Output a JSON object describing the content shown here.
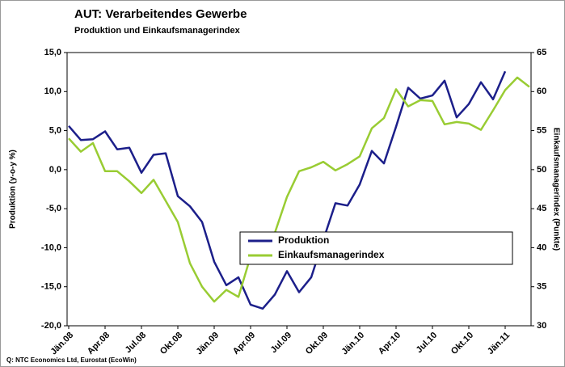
{
  "chart_data": {
    "type": "line",
    "title": "AUT: Verarbeitendes Gewerbe",
    "subtitle": "Produktion und Einkaufsmanagerindex",
    "source": "Q: NTC Economics Ltd, Eurostat (EcoWin)",
    "y_label": "Produktion (y-o-y %)",
    "y2_label": "Einkaufsmanagerindex (Punkte)",
    "categories": [
      "Jän.08",
      null,
      null,
      "Apr.08",
      null,
      null,
      "Jul.08",
      null,
      null,
      "Okt.08",
      null,
      null,
      "Jän.09",
      null,
      null,
      "Apr.09",
      null,
      null,
      "Jul.09",
      null,
      null,
      "Okt.09",
      null,
      null,
      "Jän.10",
      null,
      null,
      "Apr.10",
      null,
      null,
      "Jul.10",
      null,
      null,
      "Okt.10",
      null,
      null,
      "Jän.11",
      null,
      null
    ],
    "series": [
      {
        "name": "Produktion",
        "color": "#1c1f8a",
        "axis": "y",
        "values": [
          5.6,
          3.8,
          3.9,
          4.9,
          2.6,
          2.8,
          -0.4,
          1.9,
          2.1,
          -3.4,
          -4.7,
          -6.7,
          -11.8,
          -14.8,
          -13.8,
          -17.3,
          -17.8,
          -16.0,
          -13.0,
          -15.7,
          -13.8,
          -9.0,
          -4.3,
          -4.6,
          -1.9,
          2.4,
          0.8,
          5.5,
          10.5,
          9.1,
          9.5,
          11.4,
          6.7,
          8.4,
          11.2,
          9.0,
          12.6,
          null,
          null
        ]
      },
      {
        "name": "Einkaufsmanagerindex",
        "color": "#99cc33",
        "axis": "y2",
        "values": [
          54.0,
          52.3,
          53.4,
          49.8,
          49.8,
          48.5,
          47.0,
          48.7,
          46.0,
          43.3,
          38.0,
          35.0,
          33.1,
          34.6,
          33.7,
          38.9,
          39.2,
          41.9,
          46.5,
          49.8,
          50.3,
          51.0,
          49.9,
          50.7,
          51.7,
          55.3,
          56.6,
          60.3,
          58.1,
          58.9,
          58.8,
          55.8,
          56.1,
          55.9,
          55.1,
          57.6,
          60.2,
          61.8,
          60.6
        ]
      }
    ],
    "ylim": [
      -20,
      15
    ],
    "yticks": [
      {
        "value": -20,
        "label": "-20,0"
      },
      {
        "value": -15,
        "label": "-15,0"
      },
      {
        "value": -10,
        "label": "-10,0"
      },
      {
        "value": -5,
        "label": "-5,0"
      },
      {
        "value": 0,
        "label": "0,0"
      },
      {
        "value": 5,
        "label": "5,0"
      },
      {
        "value": 10,
        "label": "10,0"
      },
      {
        "value": 15,
        "label": "15,0"
      }
    ],
    "y2lim": [
      30,
      65
    ],
    "y2ticks": [
      30,
      35,
      40,
      45,
      50,
      55,
      60,
      65
    ],
    "grid": false,
    "legend": "lower right"
  }
}
